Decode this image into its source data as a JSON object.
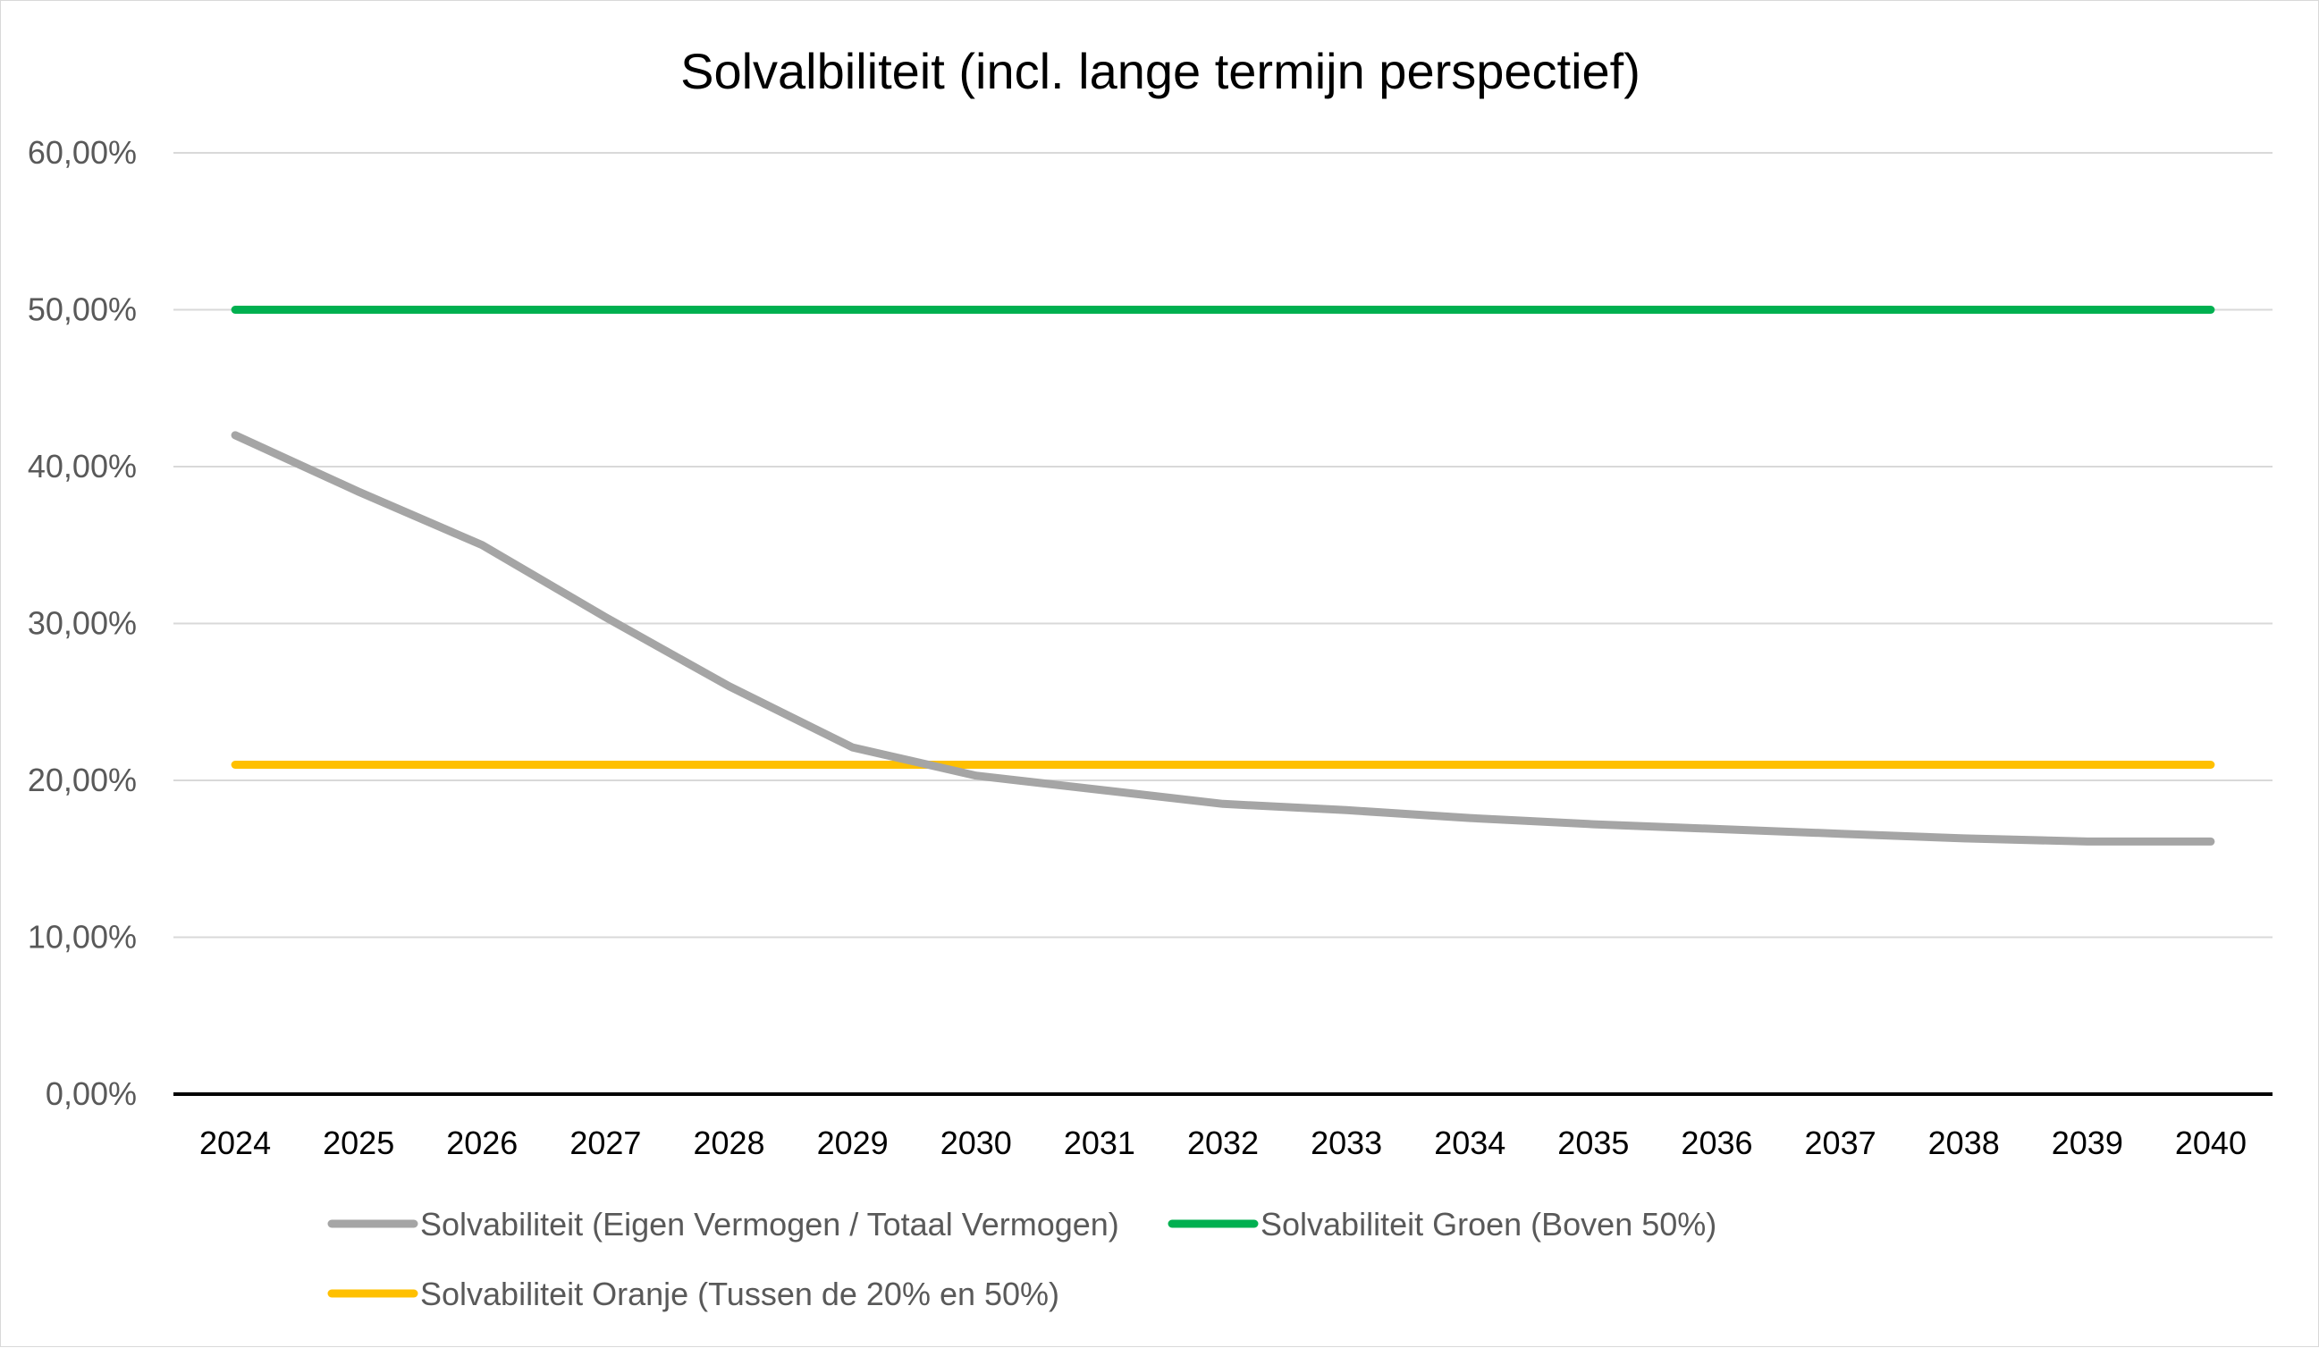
{
  "chart_data": {
    "type": "line",
    "title": "Solvalbiliteit (incl. lange termijn perspectief)",
    "xlabel": "",
    "ylabel": "",
    "categories": [
      "2024",
      "2025",
      "2026",
      "2027",
      "2028",
      "2029",
      "2030",
      "2031",
      "2032",
      "2033",
      "2034",
      "2035",
      "2036",
      "2037",
      "2038",
      "2039",
      "2040"
    ],
    "ylim": [
      0,
      60
    ],
    "y_ticks": [
      "0,00%",
      "10,00%",
      "20,00%",
      "30,00%",
      "40,00%",
      "50,00%",
      "60,00%"
    ],
    "grid": true,
    "legend_position": "bottom",
    "series": [
      {
        "name": "Solvabiliteit (Eigen Vermogen / Totaal Vermogen)",
        "color": "#a5a5a5",
        "values": [
          42.0,
          38.4,
          35.0,
          30.4,
          26.0,
          22.1,
          20.3,
          19.4,
          18.5,
          18.1,
          17.6,
          17.2,
          16.9,
          16.6,
          16.3,
          16.1,
          16.1
        ]
      },
      {
        "name": "Solvabiliteit Groen (Boven 50%)",
        "color": "#00b050",
        "values": [
          50,
          50,
          50,
          50,
          50,
          50,
          50,
          50,
          50,
          50,
          50,
          50,
          50,
          50,
          50,
          50,
          50
        ]
      },
      {
        "name": "Solvabiliteit Oranje (Tussen de 20% en 50%)",
        "color": "#ffc000",
        "values": [
          21,
          21,
          21,
          21,
          21,
          21,
          21,
          21,
          21,
          21,
          21,
          21,
          21,
          21,
          21,
          21,
          21
        ]
      }
    ]
  }
}
